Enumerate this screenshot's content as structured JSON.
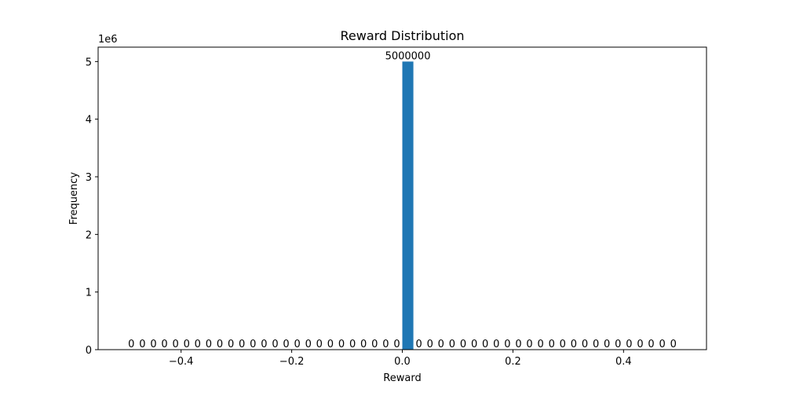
{
  "chart_data": {
    "type": "bar",
    "title": "Reward Distribution",
    "xlabel": "Reward",
    "ylabel": "Frequency",
    "y_offset_text": "1e6",
    "xlim": [
      -0.55,
      0.55
    ],
    "ylim": [
      0,
      5250000
    ],
    "xticks": [
      -0.4,
      -0.2,
      0.0,
      0.2,
      0.4
    ],
    "xtick_labels": [
      "−0.4",
      "−0.2",
      "0.0",
      "0.2",
      "0.4"
    ],
    "yticks": [
      0,
      1000000,
      2000000,
      3000000,
      4000000,
      5000000
    ],
    "ytick_labels": [
      "0",
      "1",
      "2",
      "3",
      "4",
      "5"
    ],
    "bins": {
      "start": -0.5,
      "end": 0.5,
      "count": 50
    },
    "values": [
      0,
      0,
      0,
      0,
      0,
      0,
      0,
      0,
      0,
      0,
      0,
      0,
      0,
      0,
      0,
      0,
      0,
      0,
      0,
      0,
      0,
      0,
      0,
      0,
      0,
      5000000,
      0,
      0,
      0,
      0,
      0,
      0,
      0,
      0,
      0,
      0,
      0,
      0,
      0,
      0,
      0,
      0,
      0,
      0,
      0,
      0,
      0,
      0,
      0,
      0
    ],
    "bar_labels": [
      "0",
      "0",
      "0",
      "0",
      "0",
      "0",
      "0",
      "0",
      "0",
      "0",
      "0",
      "0",
      "0",
      "0",
      "0",
      "0",
      "0",
      "0",
      "0",
      "0",
      "0",
      "0",
      "0",
      "0",
      "0",
      "5000000",
      "0",
      "0",
      "0",
      "0",
      "0",
      "0",
      "0",
      "0",
      "0",
      "0",
      "0",
      "0",
      "0",
      "0",
      "0",
      "0",
      "0",
      "0",
      "0",
      "0",
      "0",
      "0",
      "0",
      "0"
    ],
    "color": "#1f77b4",
    "grid": false,
    "legend": "none"
  }
}
